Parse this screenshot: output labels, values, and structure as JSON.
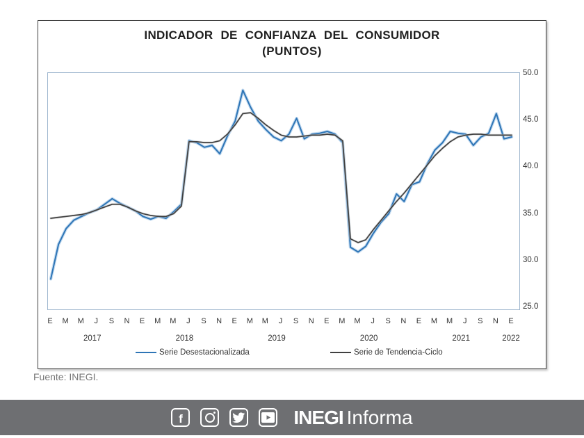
{
  "chart_data": {
    "type": "line",
    "title": "INDICADOR DE CONFIANZA DEL CONSUMIDOR",
    "subtitle": "(PUNTOS)",
    "ylim": [
      25.0,
      50.0
    ],
    "ytick_labels": [
      "50.0",
      "45.0",
      "40.0",
      "35.0",
      "30.0",
      "25.0"
    ],
    "grid": false,
    "legend_position": "bottom",
    "x_start": "2017-01",
    "x_end": "2022-01",
    "month_tick_labels": [
      "E",
      "M",
      "M",
      "J",
      "S",
      "N",
      "E",
      "M",
      "M",
      "J",
      "S",
      "N",
      "E",
      "M",
      "M",
      "J",
      "S",
      "N",
      "E",
      "M",
      "M",
      "J",
      "S",
      "N",
      "E",
      "M",
      "M",
      "J",
      "S",
      "N",
      "E"
    ],
    "years": [
      {
        "label": "2017",
        "center_month_index": 5.5
      },
      {
        "label": "2018",
        "center_month_index": 17.5
      },
      {
        "label": "2019",
        "center_month_index": 29.5
      },
      {
        "label": "2020",
        "center_month_index": 41.5
      },
      {
        "label": "2021",
        "center_month_index": 53.5
      },
      {
        "label": "2022",
        "center_month_index": 60
      }
    ],
    "legend": [
      {
        "label": "Serie Desestacionalizada",
        "color": "#2E75B6"
      },
      {
        "label": "Serie de Tendencia-Ciclo",
        "color": "#404040"
      }
    ],
    "series": [
      {
        "name": "Serie Desestacionalizada",
        "color": "#2E75B6",
        "glow": "#9DC3E6",
        "values": [
          28.1,
          31.8,
          33.5,
          34.4,
          34.8,
          35.2,
          35.5,
          36.1,
          36.7,
          36.2,
          35.8,
          35.4,
          34.8,
          34.5,
          34.8,
          34.6,
          35.3,
          36.1,
          42.9,
          42.7,
          42.2,
          42.4,
          41.5,
          43.4,
          45.0,
          48.3,
          46.5,
          45.0,
          44.1,
          43.3,
          42.9,
          43.6,
          45.3,
          43.1,
          43.6,
          43.7,
          43.9,
          43.6,
          42.7,
          31.5,
          31.0,
          31.6,
          33.0,
          34.2,
          35.1,
          37.2,
          36.4,
          38.2,
          38.5,
          40.4,
          41.9,
          42.7,
          43.9,
          43.7,
          43.6,
          42.4,
          43.3,
          43.7,
          45.8,
          43.1,
          43.3
        ]
      },
      {
        "name": "Serie de Tendencia-Ciclo",
        "color": "#404040",
        "glow": "#C6C6C6",
        "values": [
          34.6,
          34.7,
          34.8,
          34.9,
          35.0,
          35.2,
          35.5,
          35.8,
          36.1,
          36.1,
          35.8,
          35.4,
          35.1,
          34.9,
          34.8,
          34.8,
          35.1,
          35.9,
          42.8,
          42.8,
          42.7,
          42.7,
          42.9,
          43.6,
          44.6,
          45.8,
          45.9,
          45.3,
          44.6,
          44.0,
          43.5,
          43.3,
          43.3,
          43.4,
          43.5,
          43.5,
          43.6,
          43.5,
          42.9,
          32.4,
          32.0,
          32.3,
          33.4,
          34.4,
          35.4,
          36.4,
          37.3,
          38.3,
          39.3,
          40.3,
          41.3,
          42.1,
          42.8,
          43.3,
          43.5,
          43.6,
          43.6,
          43.5,
          43.5,
          43.5,
          43.5
        ]
      }
    ]
  },
  "source": {
    "text": "Fuente: INEGI."
  },
  "footer": {
    "icons": [
      {
        "name": "facebook"
      },
      {
        "name": "instagram"
      },
      {
        "name": "twitter"
      },
      {
        "name": "youtube"
      }
    ],
    "logo_bold": "INEGI",
    "logo_light": "Informa",
    "bar_color": "#6E6F72"
  },
  "colors": {
    "plot_border": "#9EB6CE",
    "card_border": "#3F3F3F",
    "title_text": "#1F1F1F",
    "axis_text": "#333333",
    "source_text": "#767676"
  }
}
